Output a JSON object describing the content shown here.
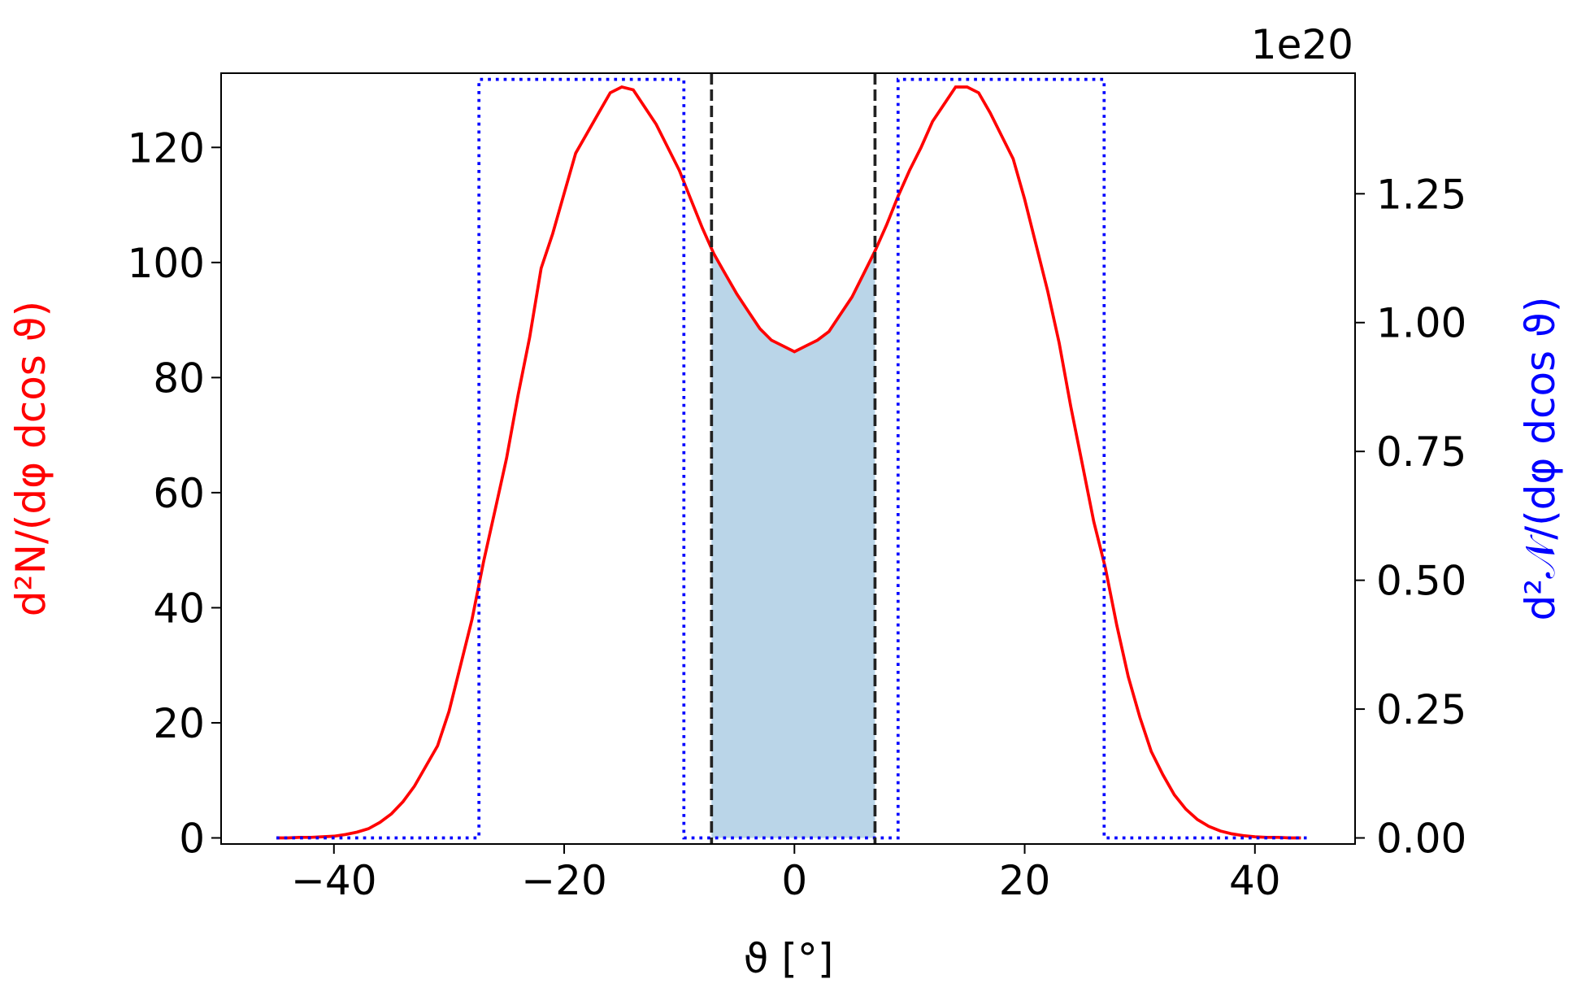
{
  "chart_data": {
    "type": "line",
    "x_label": "ϑ [°]",
    "y_label": "d²N/(dφ dcos ϑ)",
    "y2_label": "d²𝒩/(dφ dcos ϑ)",
    "y2_offset_label": "1e20",
    "xlim": [
      -49.8,
      48.7
    ],
    "ylim": [
      -1.06,
      132.9
    ],
    "y2lim": [
      -0.0118,
      1.484
    ],
    "xticks": [
      {
        "value": -40,
        "label": "−40"
      },
      {
        "value": -20,
        "label": "−20"
      },
      0,
      20,
      40
    ],
    "yticks": [
      0,
      20,
      40,
      60,
      80,
      100,
      120
    ],
    "y2ticks": [
      {
        "value": 0,
        "label": "0.00"
      },
      0.25,
      {
        "value": 0.5,
        "label": "0.50"
      },
      0.75,
      {
        "value": 1,
        "label": "1.00"
      },
      1.25
    ],
    "vlines": [
      -7.2,
      7.0
    ],
    "vline_color": "#222222",
    "fill_color": "#bad5e8",
    "series": [
      {
        "color": "#ff0000",
        "axis": "y",
        "style": "solid",
        "x": [
          -45,
          -44,
          -43,
          -42,
          -41,
          -40,
          -39,
          -38,
          -37,
          -36,
          -35,
          -34,
          -33,
          -32,
          -31,
          -30,
          -29,
          -28,
          -27,
          -26,
          -25,
          -24,
          -23,
          -22,
          -21,
          -20,
          -19,
          -18,
          -17,
          -16,
          -15,
          -14,
          -13,
          -12,
          -11,
          -10,
          -9,
          -8,
          -7,
          -6,
          -5,
          -4,
          -3,
          -2,
          -1,
          0,
          1,
          2,
          3,
          4,
          5,
          6,
          7,
          8,
          9,
          10,
          11,
          12,
          13,
          14,
          15,
          16,
          17,
          18,
          19,
          20,
          21,
          22,
          23,
          24,
          25,
          26,
          27,
          28,
          29,
          30,
          31,
          32,
          33,
          34,
          35,
          36,
          37,
          38,
          39,
          40,
          41,
          42,
          43,
          44
        ],
        "values": [
          0,
          0,
          0.1,
          0.1,
          0.2,
          0.3,
          0.6,
          1,
          1.6,
          2.7,
          4.2,
          6.3,
          9,
          12.5,
          16,
          22,
          30,
          38,
          48,
          57,
          66,
          77,
          87,
          99,
          105,
          112,
          119,
          122.5,
          126,
          129.5,
          130.5,
          130,
          127,
          124,
          120,
          116,
          111,
          106,
          101.5,
          98,
          94.5,
          91.5,
          88.5,
          86.5,
          85.5,
          84.5,
          85.5,
          86.5,
          88,
          91,
          94,
          98,
          102,
          106.5,
          111.5,
          116,
          120,
          124.5,
          127.5,
          130.5,
          130.5,
          129.5,
          126,
          122,
          118,
          111,
          103,
          95,
          86,
          75,
          65,
          55,
          47,
          37,
          28,
          21,
          15,
          11,
          7.5,
          5,
          3.2,
          2,
          1.2,
          0.7,
          0.4,
          0.2,
          0.1,
          0.1,
          0,
          0
        ]
      },
      {
        "color": "#0000ff",
        "axis": "y2",
        "style": "dotted",
        "x": [
          -45,
          -27.4,
          -27.4,
          -9.6,
          -9.6,
          9.0,
          9.0,
          26.9,
          26.9,
          44.5
        ],
        "values": [
          0,
          0,
          1.472,
          1.472,
          0,
          0,
          1.472,
          1.472,
          0,
          0
        ]
      }
    ]
  }
}
